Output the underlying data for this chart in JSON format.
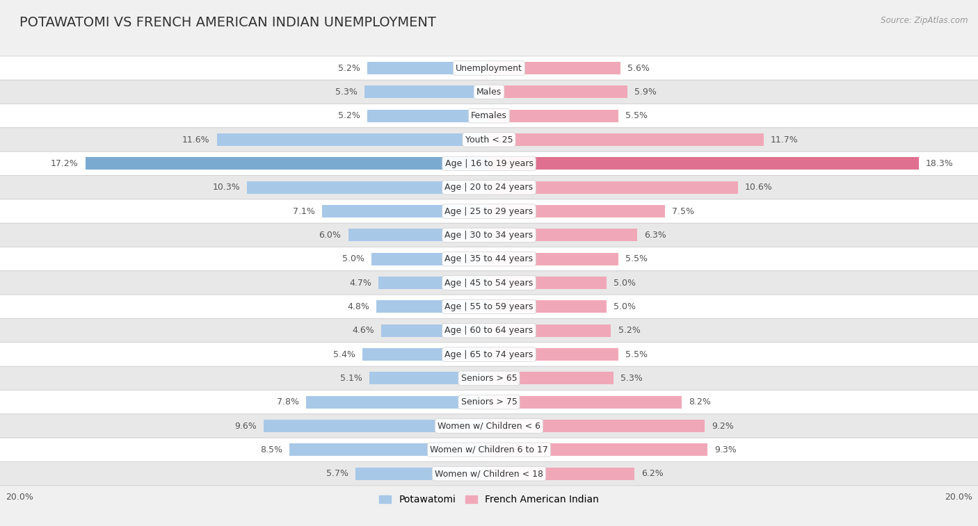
{
  "title": "POTAWATOMI VS FRENCH AMERICAN INDIAN UNEMPLOYMENT",
  "source": "Source: ZipAtlas.com",
  "categories": [
    "Unemployment",
    "Males",
    "Females",
    "Youth < 25",
    "Age | 16 to 19 years",
    "Age | 20 to 24 years",
    "Age | 25 to 29 years",
    "Age | 30 to 34 years",
    "Age | 35 to 44 years",
    "Age | 45 to 54 years",
    "Age | 55 to 59 years",
    "Age | 60 to 64 years",
    "Age | 65 to 74 years",
    "Seniors > 65",
    "Seniors > 75",
    "Women w/ Children < 6",
    "Women w/ Children 6 to 17",
    "Women w/ Children < 18"
  ],
  "potawatomi": [
    5.2,
    5.3,
    5.2,
    11.6,
    17.2,
    10.3,
    7.1,
    6.0,
    5.0,
    4.7,
    4.8,
    4.6,
    5.4,
    5.1,
    7.8,
    9.6,
    8.5,
    5.7
  ],
  "french_american": [
    5.6,
    5.9,
    5.5,
    11.7,
    18.3,
    10.6,
    7.5,
    6.3,
    5.5,
    5.0,
    5.0,
    5.2,
    5.5,
    5.3,
    8.2,
    9.2,
    9.3,
    6.2
  ],
  "potawatomi_color": "#a8c8e8",
  "french_american_color": "#f0a8b8",
  "potawatomi_color_highlight": "#7aaad0",
  "french_american_color_highlight": "#e07090",
  "background_color": "#f0f0f0",
  "row_white_color": "#ffffff",
  "row_gray_color": "#e8e8e8",
  "xlim": 20.0,
  "bar_height": 0.52,
  "label_fontsize": 9.0,
  "cat_fontsize": 9.0,
  "title_fontsize": 14,
  "legend_fontsize": 10
}
